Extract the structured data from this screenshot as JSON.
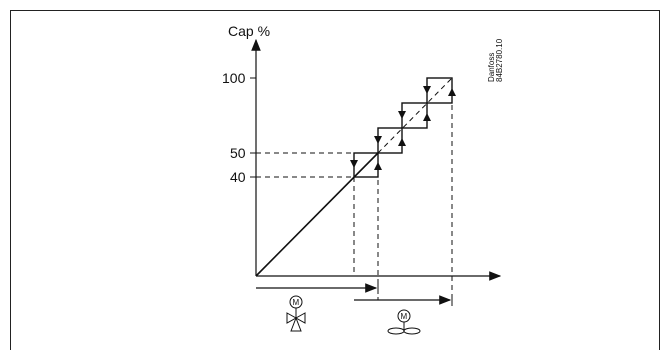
{
  "diagram": {
    "y_axis_label": "Cap %",
    "y_ticks": [
      "100",
      "50",
      "40"
    ],
    "watermark_line1": "Danfoss",
    "watermark_line2": "84B2780.10",
    "icon_left": "motor-valve-icon",
    "icon_right": "motor-fan-icon",
    "motor_letter": "M"
  }
}
